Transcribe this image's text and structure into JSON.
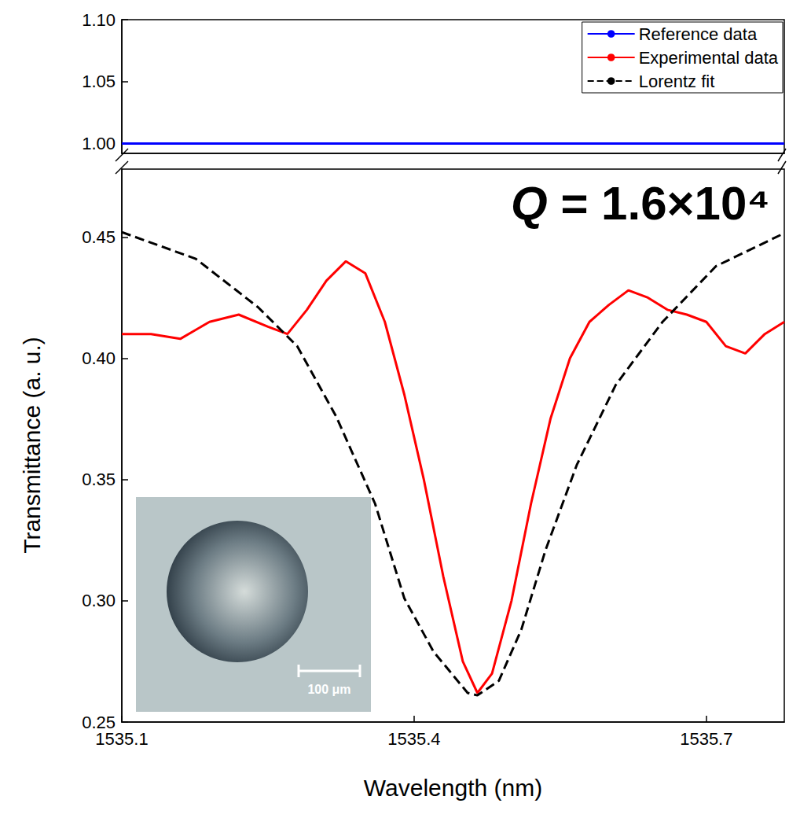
{
  "chart_data": [
    {
      "type": "line",
      "xlim": [
        1535.1,
        1535.78
      ],
      "xticks": [
        1535.1,
        1535.4,
        1535.7
      ],
      "ylim": [
        0.992,
        1.1
      ],
      "yticks": [
        {
          "value": 1.0,
          "label": "1.00"
        },
        {
          "value": 1.05,
          "label": "1.05"
        },
        {
          "value": 1.1,
          "label": "1.10"
        }
      ],
      "tick_labels": "y",
      "legend": "upper right",
      "series": [
        {
          "name": "Reference data",
          "color": "#0000ff",
          "line_style": "solid",
          "x": [
            1535.1,
            1535.78
          ],
          "values": [
            1.0,
            1.0
          ]
        }
      ]
    },
    {
      "type": "line",
      "xlabel": "Wavelength (nm)",
      "ylabel": "Transmittance (a. u.)",
      "annotation": "Q = 1.6×10⁴",
      "inset_label": "100 μm",
      "xlim": [
        1535.1,
        1535.78
      ],
      "xticks": [
        1535.1,
        1535.4,
        1535.7
      ],
      "ylim": [
        0.25,
        0.478
      ],
      "yticks": [
        0.25,
        {
          "value": 0.3,
          "label": "0.30"
        },
        0.35,
        {
          "value": 0.4,
          "label": "0.40"
        },
        0.45
      ],
      "series": [
        {
          "name": "Experimental data",
          "color": "#ff0000",
          "line_style": "solid",
          "x": [
            1535.1,
            1535.13,
            1535.16,
            1535.19,
            1535.22,
            1535.25,
            1535.27,
            1535.29,
            1535.31,
            1535.33,
            1535.35,
            1535.37,
            1535.39,
            1535.41,
            1535.43,
            1535.45,
            1535.465,
            1535.48,
            1535.5,
            1535.52,
            1535.54,
            1535.56,
            1535.58,
            1535.6,
            1535.62,
            1535.64,
            1535.66,
            1535.68,
            1535.7,
            1535.72,
            1535.74,
            1535.76,
            1535.78
          ],
          "values": [
            0.41,
            0.41,
            0.408,
            0.415,
            0.418,
            0.413,
            0.41,
            0.42,
            0.432,
            0.44,
            0.435,
            0.415,
            0.385,
            0.35,
            0.31,
            0.275,
            0.262,
            0.27,
            0.3,
            0.34,
            0.375,
            0.4,
            0.415,
            0.422,
            0.428,
            0.425,
            0.42,
            0.418,
            0.415,
            0.405,
            0.402,
            0.41,
            0.415
          ]
        },
        {
          "name": "Lorentz fit",
          "color": "#000000",
          "line_style": "dashed",
          "x": [
            1535.1,
            1535.176,
            1535.24,
            1535.28,
            1535.32,
            1535.36,
            1535.39,
            1535.42,
            1535.455,
            1535.465,
            1535.487,
            1535.51,
            1535.535,
            1535.567,
            1535.607,
            1535.655,
            1535.71,
            1535.777
          ],
          "values": [
            0.452,
            0.441,
            0.421,
            0.405,
            0.376,
            0.34,
            0.301,
            0.279,
            0.262,
            0.261,
            0.267,
            0.288,
            0.321,
            0.356,
            0.389,
            0.415,
            0.438,
            0.451
          ]
        }
      ]
    }
  ]
}
